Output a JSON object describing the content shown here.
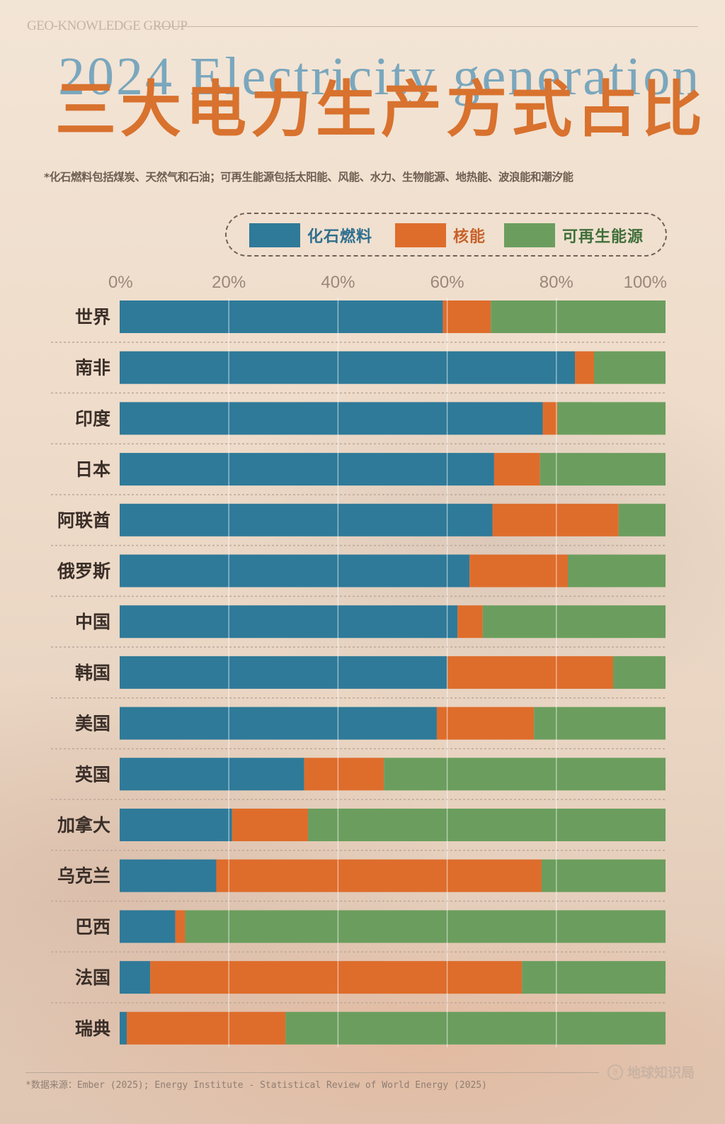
{
  "header": {
    "brand": "GEO-KNOWLEDGE GROUP",
    "title_en": "2024   Electricity generation",
    "title_zh": "三大电力生产方式占比",
    "note": "*化石燃料包括煤炭、天然气和石油；可再生能源包括太阳能、风能、水力、生物能源、地热能、波浪能和潮汐能"
  },
  "legend": {
    "items": [
      {
        "label": "化石燃料",
        "color": "#2f7a99",
        "text_color": "#2f6f8f"
      },
      {
        "label": "核能",
        "color": "#de6d2c",
        "text_color": "#c7612a"
      },
      {
        "label": "可再生能源",
        "color": "#6b9e5e",
        "text_color": "#3f6f3a"
      }
    ]
  },
  "chart_data": {
    "type": "bar",
    "orientation": "horizontal",
    "stacked": true,
    "xlim": [
      0,
      100
    ],
    "x_ticks": [
      "0%",
      "20%",
      "40%",
      "60%",
      "80%",
      "100%"
    ],
    "categories": [
      "世界",
      "南非",
      "印度",
      "日本",
      "阿联酋",
      "俄罗斯",
      "中国",
      "韩国",
      "美国",
      "英国",
      "加拿大",
      "乌克兰",
      "巴西",
      "法国",
      "瑞典"
    ],
    "series": [
      {
        "name": "化石燃料",
        "color": "#2f7a99",
        "values": [
          59.2,
          83.4,
          77.5,
          68.6,
          68.3,
          64.1,
          61.9,
          60.0,
          58.1,
          33.8,
          20.6,
          17.7,
          10.2,
          5.6,
          1.3
        ]
      },
      {
        "name": "核能",
        "color": "#de6d2c",
        "values": [
          8.8,
          3.5,
          2.7,
          8.4,
          23.1,
          18.0,
          4.6,
          30.4,
          17.8,
          14.6,
          13.9,
          59.6,
          1.8,
          68.1,
          29.1
        ]
      },
      {
        "name": "可再生能源",
        "color": "#6b9e5e",
        "values": [
          32.0,
          13.1,
          19.8,
          23.0,
          8.6,
          17.9,
          33.5,
          9.6,
          24.1,
          51.6,
          65.5,
          22.7,
          88.0,
          26.3,
          69.6
        ]
      }
    ]
  },
  "footer": {
    "source": "*数据来源：Ember (2025); Energy Institute - Statistical Review of World Energy (2025)",
    "logo_mark": "8",
    "logo_text": "地球知识局"
  }
}
